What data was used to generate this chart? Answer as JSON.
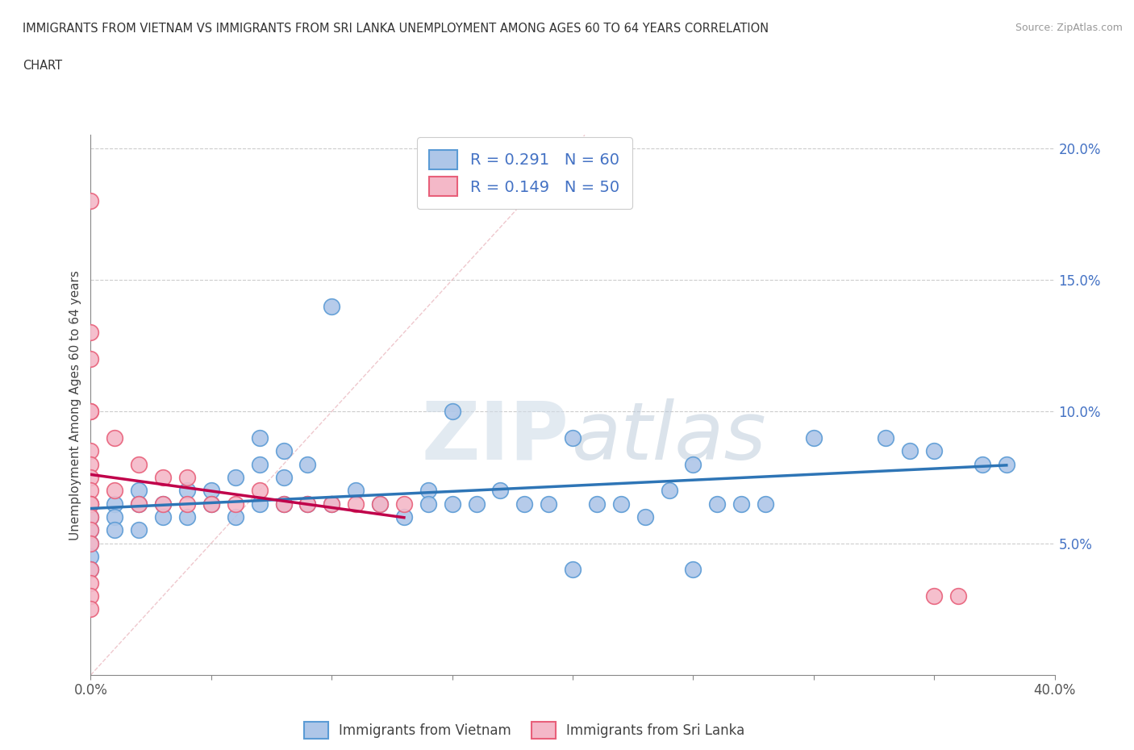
{
  "title_line1": "IMMIGRANTS FROM VIETNAM VS IMMIGRANTS FROM SRI LANKA UNEMPLOYMENT AMONG AGES 60 TO 64 YEARS CORRELATION",
  "title_line2": "CHART",
  "source": "Source: ZipAtlas.com",
  "ylabel": "Unemployment Among Ages 60 to 64 years",
  "watermark_zip": "ZIP",
  "watermark_atlas": "atlas",
  "xlim": [
    0.0,
    0.4
  ],
  "ylim": [
    0.0,
    0.205
  ],
  "vietnam_color": "#aec6e8",
  "vietnam_edge": "#5b9bd5",
  "srilanka_color": "#f4b8c8",
  "srilanka_edge": "#e8607a",
  "vietnam_R": 0.291,
  "vietnam_N": 60,
  "srilanka_R": 0.149,
  "srilanka_N": 50,
  "trend_vietnam_color": "#2e75b6",
  "trend_srilanka_color": "#c0004a",
  "diagonal_color": "#e8b0b8",
  "vietnam_x": [
    0.0,
    0.0,
    0.0,
    0.0,
    0.0,
    0.0,
    0.01,
    0.01,
    0.01,
    0.02,
    0.02,
    0.02,
    0.03,
    0.03,
    0.04,
    0.04,
    0.05,
    0.05,
    0.06,
    0.06,
    0.07,
    0.07,
    0.07,
    0.08,
    0.08,
    0.08,
    0.09,
    0.09,
    0.1,
    0.1,
    0.11,
    0.12,
    0.13,
    0.14,
    0.14,
    0.15,
    0.15,
    0.16,
    0.17,
    0.18,
    0.19,
    0.2,
    0.2,
    0.21,
    0.22,
    0.23,
    0.24,
    0.25,
    0.25,
    0.26,
    0.27,
    0.28,
    0.3,
    0.33,
    0.34,
    0.35,
    0.37,
    0.38
  ],
  "vietnam_y": [
    0.065,
    0.06,
    0.055,
    0.05,
    0.045,
    0.04,
    0.065,
    0.06,
    0.055,
    0.07,
    0.065,
    0.055,
    0.065,
    0.06,
    0.07,
    0.06,
    0.07,
    0.065,
    0.075,
    0.06,
    0.09,
    0.08,
    0.065,
    0.085,
    0.075,
    0.065,
    0.08,
    0.065,
    0.14,
    0.065,
    0.07,
    0.065,
    0.06,
    0.07,
    0.065,
    0.1,
    0.065,
    0.065,
    0.07,
    0.065,
    0.065,
    0.09,
    0.04,
    0.065,
    0.065,
    0.06,
    0.07,
    0.08,
    0.04,
    0.065,
    0.065,
    0.065,
    0.09,
    0.09,
    0.085,
    0.085,
    0.08,
    0.08
  ],
  "srilanka_x": [
    0.0,
    0.0,
    0.0,
    0.0,
    0.0,
    0.0,
    0.0,
    0.0,
    0.0,
    0.0,
    0.0,
    0.0,
    0.0,
    0.0,
    0.0,
    0.0,
    0.0,
    0.0,
    0.01,
    0.01,
    0.02,
    0.02,
    0.03,
    0.03,
    0.04,
    0.04,
    0.05,
    0.06,
    0.07,
    0.08,
    0.09,
    0.1,
    0.11,
    0.12,
    0.13,
    0.35,
    0.36
  ],
  "srilanka_y": [
    0.18,
    0.13,
    0.12,
    0.1,
    0.1,
    0.085,
    0.08,
    0.075,
    0.07,
    0.065,
    0.065,
    0.06,
    0.055,
    0.05,
    0.04,
    0.035,
    0.03,
    0.025,
    0.09,
    0.07,
    0.08,
    0.065,
    0.075,
    0.065,
    0.075,
    0.065,
    0.065,
    0.065,
    0.07,
    0.065,
    0.065,
    0.065,
    0.065,
    0.065,
    0.065,
    0.03,
    0.03
  ]
}
